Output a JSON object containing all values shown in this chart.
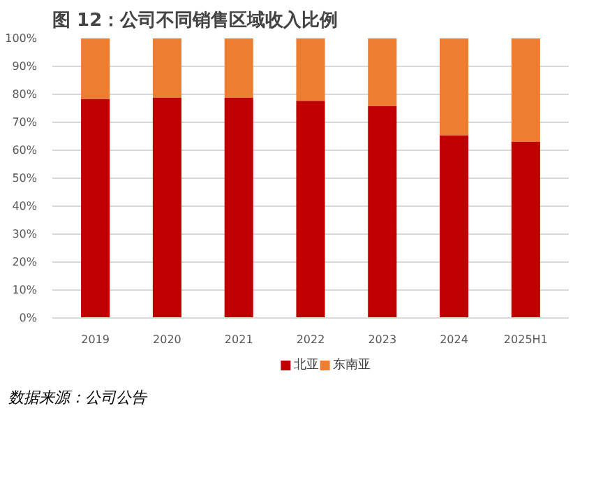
{
  "chart_data": {
    "type": "bar",
    "stacked": true,
    "title": "图 12：公司不同销售区域收入比例",
    "categories": [
      "2019",
      "2020",
      "2021",
      "2022",
      "2023",
      "2024",
      "2025H1"
    ],
    "series": [
      {
        "name": "北亚",
        "color": "#c00000",
        "values": [
          78.4,
          78.9,
          78.9,
          77.7,
          75.9,
          65.4,
          63.1
        ]
      },
      {
        "name": "东南亚",
        "color": "#ed7d31",
        "values": [
          21.6,
          21.1,
          21.1,
          22.3,
          24.1,
          34.6,
          36.9
        ]
      }
    ],
    "ylim": [
      0,
      100
    ],
    "yticks": [
      {
        "value": 0,
        "label": "0%"
      },
      {
        "value": 10,
        "label": "10%"
      },
      {
        "value": 20,
        "label": "20%"
      },
      {
        "value": 30,
        "label": "30%"
      },
      {
        "value": 40,
        "label": "40%"
      },
      {
        "value": 50,
        "label": "50%"
      },
      {
        "value": 60,
        "label": "60%"
      },
      {
        "value": 70,
        "label": "70%"
      },
      {
        "value": 80,
        "label": "80%"
      },
      {
        "value": 90,
        "label": "90%"
      },
      {
        "value": 100,
        "label": "100%"
      }
    ],
    "grid": "y",
    "legend": "bottom",
    "annotations": [
      "数据来源：公司公告"
    ]
  }
}
